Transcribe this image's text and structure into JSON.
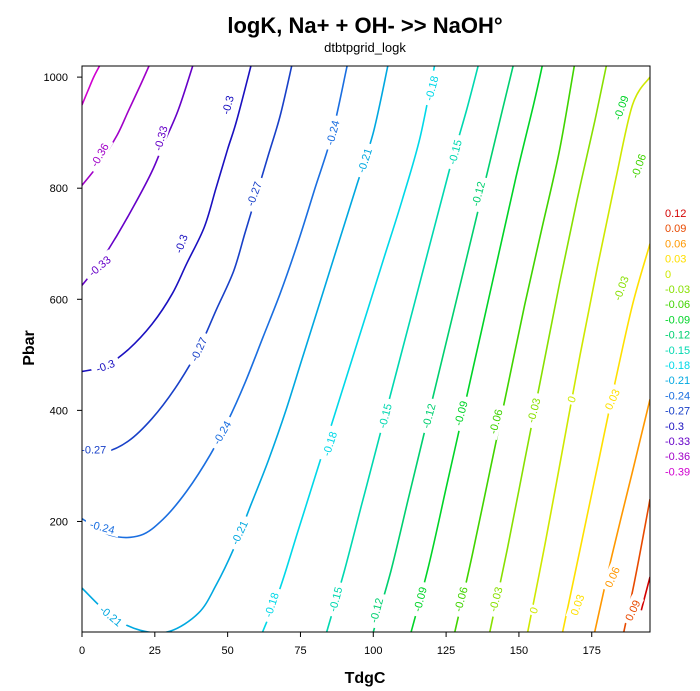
{
  "chart_data": {
    "type": "contour",
    "title": "logK, Na+ + OH- >> NaOH°",
    "subtitle": "dtbtpgrid_logk",
    "xlabel": "TdgC",
    "ylabel": "Pbar",
    "xlim": [
      0,
      195
    ],
    "ylim": [
      1,
      1020
    ],
    "xticks": [
      0,
      25,
      50,
      75,
      100,
      125,
      150,
      175
    ],
    "yticks": [
      200,
      400,
      600,
      800,
      1000
    ],
    "grid": false,
    "legend_position": "right",
    "legend": [
      {
        "label": "0.12",
        "color": "#d40000"
      },
      {
        "label": "0.09",
        "color": "#e84a00"
      },
      {
        "label": "0.06",
        "color": "#ff9800"
      },
      {
        "label": "0.03",
        "color": "#ffe000"
      },
      {
        "label": "0",
        "color": "#cfe800"
      },
      {
        "label": "-0.03",
        "color": "#88e000"
      },
      {
        "label": "-0.06",
        "color": "#40d400"
      },
      {
        "label": "-0.09",
        "color": "#00d428"
      },
      {
        "label": "-0.12",
        "color": "#00d070"
      },
      {
        "label": "-0.15",
        "color": "#00d8b0"
      },
      {
        "label": "-0.18",
        "color": "#00d8e8"
      },
      {
        "label": "-0.21",
        "color": "#00a8e0"
      },
      {
        "label": "-0.24",
        "color": "#1a6ee0"
      },
      {
        "label": "-0.27",
        "color": "#1840c8"
      },
      {
        "label": "-0.3",
        "color": "#1a10c0"
      },
      {
        "label": "-0.33",
        "color": "#6600c8"
      },
      {
        "label": "-0.36",
        "color": "#a000c8"
      },
      {
        "label": "-0.39",
        "color": "#d000d0"
      }
    ],
    "contours": [
      {
        "level": "-0.39",
        "color": "#d000d0",
        "points": [
          [
            0,
            950
          ],
          [
            2,
            975
          ],
          [
            4,
            1000
          ],
          [
            6,
            1020
          ]
        ]
      },
      {
        "level": "-0.36",
        "color": "#a000c8",
        "points": [
          [
            0,
            805
          ],
          [
            6,
            845
          ],
          [
            12,
            895
          ],
          [
            16,
            940
          ],
          [
            20,
            985
          ],
          [
            23,
            1020
          ]
        ]
      },
      {
        "level": "-0.33",
        "color": "#6600c8",
        "points": [
          [
            0,
            625
          ],
          [
            6,
            665
          ],
          [
            12,
            715
          ],
          [
            18,
            770
          ],
          [
            24,
            830
          ],
          [
            28,
            880
          ],
          [
            33,
            940
          ],
          [
            38,
            1020
          ]
        ]
      },
      {
        "level": "-0.3",
        "color": "#1a10c0",
        "points": [
          [
            0,
            470
          ],
          [
            8,
            480
          ],
          [
            16,
            510
          ],
          [
            24,
            555
          ],
          [
            31,
            610
          ],
          [
            36,
            665
          ],
          [
            42,
            730
          ],
          [
            46,
            800
          ],
          [
            50,
            870
          ],
          [
            53,
            920
          ],
          [
            58,
            1020
          ]
        ]
      },
      {
        "level": "-0.27",
        "color": "#1840c8",
        "points": [
          [
            0,
            325
          ],
          [
            8,
            325
          ],
          [
            16,
            345
          ],
          [
            24,
            385
          ],
          [
            32,
            440
          ],
          [
            40,
            510
          ],
          [
            46,
            580
          ],
          [
            52,
            650
          ],
          [
            56,
            720
          ],
          [
            60,
            790
          ],
          [
            64,
            860
          ],
          [
            68,
            930
          ],
          [
            72,
            1020
          ]
        ]
      },
      {
        "level": "-0.24",
        "color": "#1a6ee0",
        "points": [
          [
            0,
            205
          ],
          [
            10,
            175
          ],
          [
            20,
            175
          ],
          [
            28,
            205
          ],
          [
            36,
            255
          ],
          [
            44,
            320
          ],
          [
            50,
            380
          ],
          [
            56,
            450
          ],
          [
            62,
            530
          ],
          [
            68,
            610
          ],
          [
            74,
            700
          ],
          [
            80,
            800
          ],
          [
            86,
            900
          ],
          [
            91,
            1020
          ]
        ]
      },
      {
        "level": "-0.21",
        "color": "#00a8e0",
        "points": [
          [
            0,
            80
          ],
          [
            10,
            30
          ],
          [
            20,
            4
          ],
          [
            30,
            2
          ],
          [
            40,
            35
          ],
          [
            46,
            85
          ],
          [
            52,
            150
          ],
          [
            58,
            230
          ],
          [
            64,
            310
          ],
          [
            70,
            400
          ],
          [
            76,
            500
          ],
          [
            82,
            600
          ],
          [
            88,
            700
          ],
          [
            94,
            800
          ],
          [
            100,
            900
          ],
          [
            105,
            1020
          ]
        ]
      },
      {
        "level": "-0.18",
        "color": "#00d8e8",
        "points": [
          [
            62,
            1
          ],
          [
            68,
            80
          ],
          [
            74,
            180
          ],
          [
            80,
            280
          ],
          [
            86,
            380
          ],
          [
            92,
            480
          ],
          [
            98,
            580
          ],
          [
            104,
            680
          ],
          [
            110,
            780
          ],
          [
            116,
            890
          ],
          [
            121,
            1020
          ]
        ]
      },
      {
        "level": "-0.15",
        "color": "#00d8b0",
        "points": [
          [
            84,
            1
          ],
          [
            90,
            110
          ],
          [
            96,
            230
          ],
          [
            102,
            350
          ],
          [
            108,
            470
          ],
          [
            114,
            590
          ],
          [
            120,
            710
          ],
          [
            126,
            830
          ],
          [
            132,
            940
          ],
          [
            136,
            1020
          ]
        ]
      },
      {
        "level": "-0.12",
        "color": "#00d070",
        "points": [
          [
            100,
            1
          ],
          [
            106,
            110
          ],
          [
            112,
            240
          ],
          [
            118,
            370
          ],
          [
            124,
            500
          ],
          [
            130,
            630
          ],
          [
            136,
            760
          ],
          [
            142,
            890
          ],
          [
            148,
            1020
          ]
        ]
      },
      {
        "level": "-0.09",
        "color": "#00d428",
        "points": [
          [
            113,
            1
          ],
          [
            119,
            120
          ],
          [
            125,
            260
          ],
          [
            131,
            400
          ],
          [
            137,
            540
          ],
          [
            143,
            680
          ],
          [
            149,
            820
          ],
          [
            155,
            950
          ],
          [
            158,
            1020
          ]
        ]
      },
      {
        "level": "-0.06",
        "color": "#40d400",
        "points": [
          [
            128,
            1
          ],
          [
            134,
            140
          ],
          [
            140,
            290
          ],
          [
            146,
            440
          ],
          [
            152,
            590
          ],
          [
            158,
            730
          ],
          [
            164,
            870
          ],
          [
            169,
            1020
          ]
        ]
      },
      {
        "level": "-0.03",
        "color": "#88e000",
        "points": [
          [
            140,
            1
          ],
          [
            146,
            150
          ],
          [
            152,
            310
          ],
          [
            158,
            470
          ],
          [
            164,
            630
          ],
          [
            170,
            780
          ],
          [
            176,
            920
          ],
          [
            180,
            1020
          ]
        ]
      },
      {
        "level": "0",
        "color": "#cfe800",
        "points": [
          [
            153,
            1
          ],
          [
            159,
            160
          ],
          [
            165,
            330
          ],
          [
            171,
            500
          ],
          [
            177,
            660
          ],
          [
            183,
            810
          ],
          [
            189,
            950
          ],
          [
            195,
            1000
          ]
        ]
      },
      {
        "level": "0.03",
        "color": "#ffe000",
        "points": [
          [
            165,
            1
          ],
          [
            171,
            150
          ],
          [
            177,
            300
          ],
          [
            183,
            450
          ],
          [
            189,
            590
          ],
          [
            195,
            700
          ]
        ]
      },
      {
        "level": "0.06",
        "color": "#ff9800",
        "points": [
          [
            176,
            1
          ],
          [
            182,
            140
          ],
          [
            189,
            290
          ],
          [
            195,
            420
          ]
        ]
      },
      {
        "level": "0.09",
        "color": "#e84a00",
        "points": [
          [
            186,
            1
          ],
          [
            190,
            100
          ],
          [
            195,
            240
          ]
        ]
      },
      {
        "level": "0.12",
        "color": "#d40000",
        "points": [
          [
            192,
            40
          ],
          [
            195,
            100
          ]
        ]
      }
    ],
    "contour_labels": [
      {
        "text": "-0.36",
        "x": 6,
        "y": 860,
        "rot": -60,
        "color": "#a000c8"
      },
      {
        "text": "-0.33",
        "x": 27,
        "y": 890,
        "rot": -75,
        "color": "#6600c8"
      },
      {
        "text": "-0.33",
        "x": 6,
        "y": 660,
        "rot": -40,
        "color": "#6600c8"
      },
      {
        "text": "-0.3",
        "x": 50,
        "y": 950,
        "rot": -75,
        "color": "#1a10c0"
      },
      {
        "text": "-0.3",
        "x": 34,
        "y": 700,
        "rot": -70,
        "color": "#1a10c0"
      },
      {
        "text": "-0.3",
        "x": 8,
        "y": 480,
        "rot": -20,
        "color": "#1a10c0"
      },
      {
        "text": "-0.27",
        "x": 59,
        "y": 790,
        "rot": -70,
        "color": "#1840c8"
      },
      {
        "text": "-0.27",
        "x": 40,
        "y": 510,
        "rot": -65,
        "color": "#1840c8"
      },
      {
        "text": "-0.27",
        "x": 4,
        "y": 330,
        "rot": 0,
        "color": "#1840c8"
      },
      {
        "text": "-0.24",
        "x": 86,
        "y": 900,
        "rot": -75,
        "color": "#1a6ee0"
      },
      {
        "text": "-0.24",
        "x": 48,
        "y": 360,
        "rot": -60,
        "color": "#1a6ee0"
      },
      {
        "text": "-0.24",
        "x": 7,
        "y": 190,
        "rot": 15,
        "color": "#1a6ee0"
      },
      {
        "text": "-0.21",
        "x": 97,
        "y": 850,
        "rot": -72,
        "color": "#00a8e0"
      },
      {
        "text": "-0.21",
        "x": 54,
        "y": 180,
        "rot": -65,
        "color": "#00a8e0"
      },
      {
        "text": "-0.21",
        "x": 10,
        "y": 30,
        "rot": 40,
        "color": "#00a8e0"
      },
      {
        "text": "-0.18",
        "x": 120,
        "y": 980,
        "rot": -75,
        "color": "#00d8e8"
      },
      {
        "text": "-0.18",
        "x": 85,
        "y": 340,
        "rot": -72,
        "color": "#00d8e8"
      },
      {
        "text": "-0.18",
        "x": 65,
        "y": 50,
        "rot": -72,
        "color": "#00d8e8"
      },
      {
        "text": "-0.15",
        "x": 128,
        "y": 865,
        "rot": -75,
        "color": "#00d8b0"
      },
      {
        "text": "-0.15",
        "x": 104,
        "y": 390,
        "rot": -75,
        "color": "#00d8b0"
      },
      {
        "text": "-0.15",
        "x": 87,
        "y": 60,
        "rot": -75,
        "color": "#00d8b0"
      },
      {
        "text": "-0.12",
        "x": 136,
        "y": 790,
        "rot": -75,
        "color": "#00d070"
      },
      {
        "text": "-0.12",
        "x": 119,
        "y": 390,
        "rot": -75,
        "color": "#00d070"
      },
      {
        "text": "-0.12",
        "x": 101,
        "y": 40,
        "rot": -75,
        "color": "#00d070"
      },
      {
        "text": "-0.09",
        "x": 130,
        "y": 395,
        "rot": -75,
        "color": "#00d428"
      },
      {
        "text": "-0.09",
        "x": 116,
        "y": 60,
        "rot": -75,
        "color": "#00d428"
      },
      {
        "text": "-0.09",
        "x": 185,
        "y": 945,
        "rot": -70,
        "color": "#00d428"
      },
      {
        "text": "-0.06",
        "x": 142,
        "y": 380,
        "rot": -75,
        "color": "#40d400"
      },
      {
        "text": "-0.06",
        "x": 130,
        "y": 60,
        "rot": -75,
        "color": "#40d400"
      },
      {
        "text": "-0.06",
        "x": 191,
        "y": 840,
        "rot": -70,
        "color": "#40d400"
      },
      {
        "text": "-0.03",
        "x": 155,
        "y": 400,
        "rot": -75,
        "color": "#88e000"
      },
      {
        "text": "-0.03",
        "x": 142,
        "y": 60,
        "rot": -75,
        "color": "#88e000"
      },
      {
        "text": "-0.03",
        "x": 185,
        "y": 620,
        "rot": -70,
        "color": "#88e000"
      },
      {
        "text": "0",
        "x": 168,
        "y": 420,
        "rot": -70,
        "color": "#cfe800"
      },
      {
        "text": "0",
        "x": 155,
        "y": 40,
        "rot": -70,
        "color": "#cfe800"
      },
      {
        "text": "0.03",
        "x": 170,
        "y": 50,
        "rot": -70,
        "color": "#ffe000"
      },
      {
        "text": "0.03",
        "x": 182,
        "y": 420,
        "rot": -65,
        "color": "#ffe000"
      },
      {
        "text": "0.06",
        "x": 182,
        "y": 100,
        "rot": -65,
        "color": "#ff9800"
      },
      {
        "text": "0.09",
        "x": 189,
        "y": 40,
        "rot": -65,
        "color": "#e84a00"
      }
    ]
  }
}
